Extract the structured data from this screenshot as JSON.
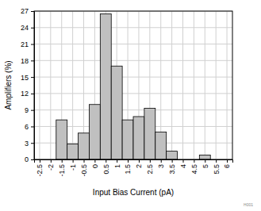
{
  "chart_data": {
    "type": "histogram",
    "x_label": "Input Bias Current (pA)",
    "y_label": "Amplifiers (%)",
    "bins": [
      -1.75,
      -1.25,
      -0.75,
      -0.25,
      0.25,
      0.75,
      1.25,
      1.75,
      2.25,
      2.75,
      3.25,
      3.75,
      4.25,
      4.75,
      5.25
    ],
    "values": [
      7.2,
      2.8,
      4.8,
      10,
      26.5,
      17,
      7.2,
      7.8,
      9.3,
      5,
      1.5,
      0,
      0,
      0.8
    ],
    "color": "#c0c0c0",
    "xlim": [
      -2.75,
      6.25
    ],
    "xticks": [
      -2.5,
      -2,
      -1.5,
      -1,
      -0.5,
      0,
      0.5,
      1,
      1.5,
      2,
      2.5,
      3,
      3.5,
      4,
      4.5,
      5,
      5.5,
      6
    ],
    "ylim": [
      0,
      27
    ],
    "yticks": [
      0,
      3,
      6,
      9,
      12,
      15,
      18,
      21,
      24,
      27
    ],
    "grid": true,
    "annotations": [
      "H001"
    ]
  }
}
